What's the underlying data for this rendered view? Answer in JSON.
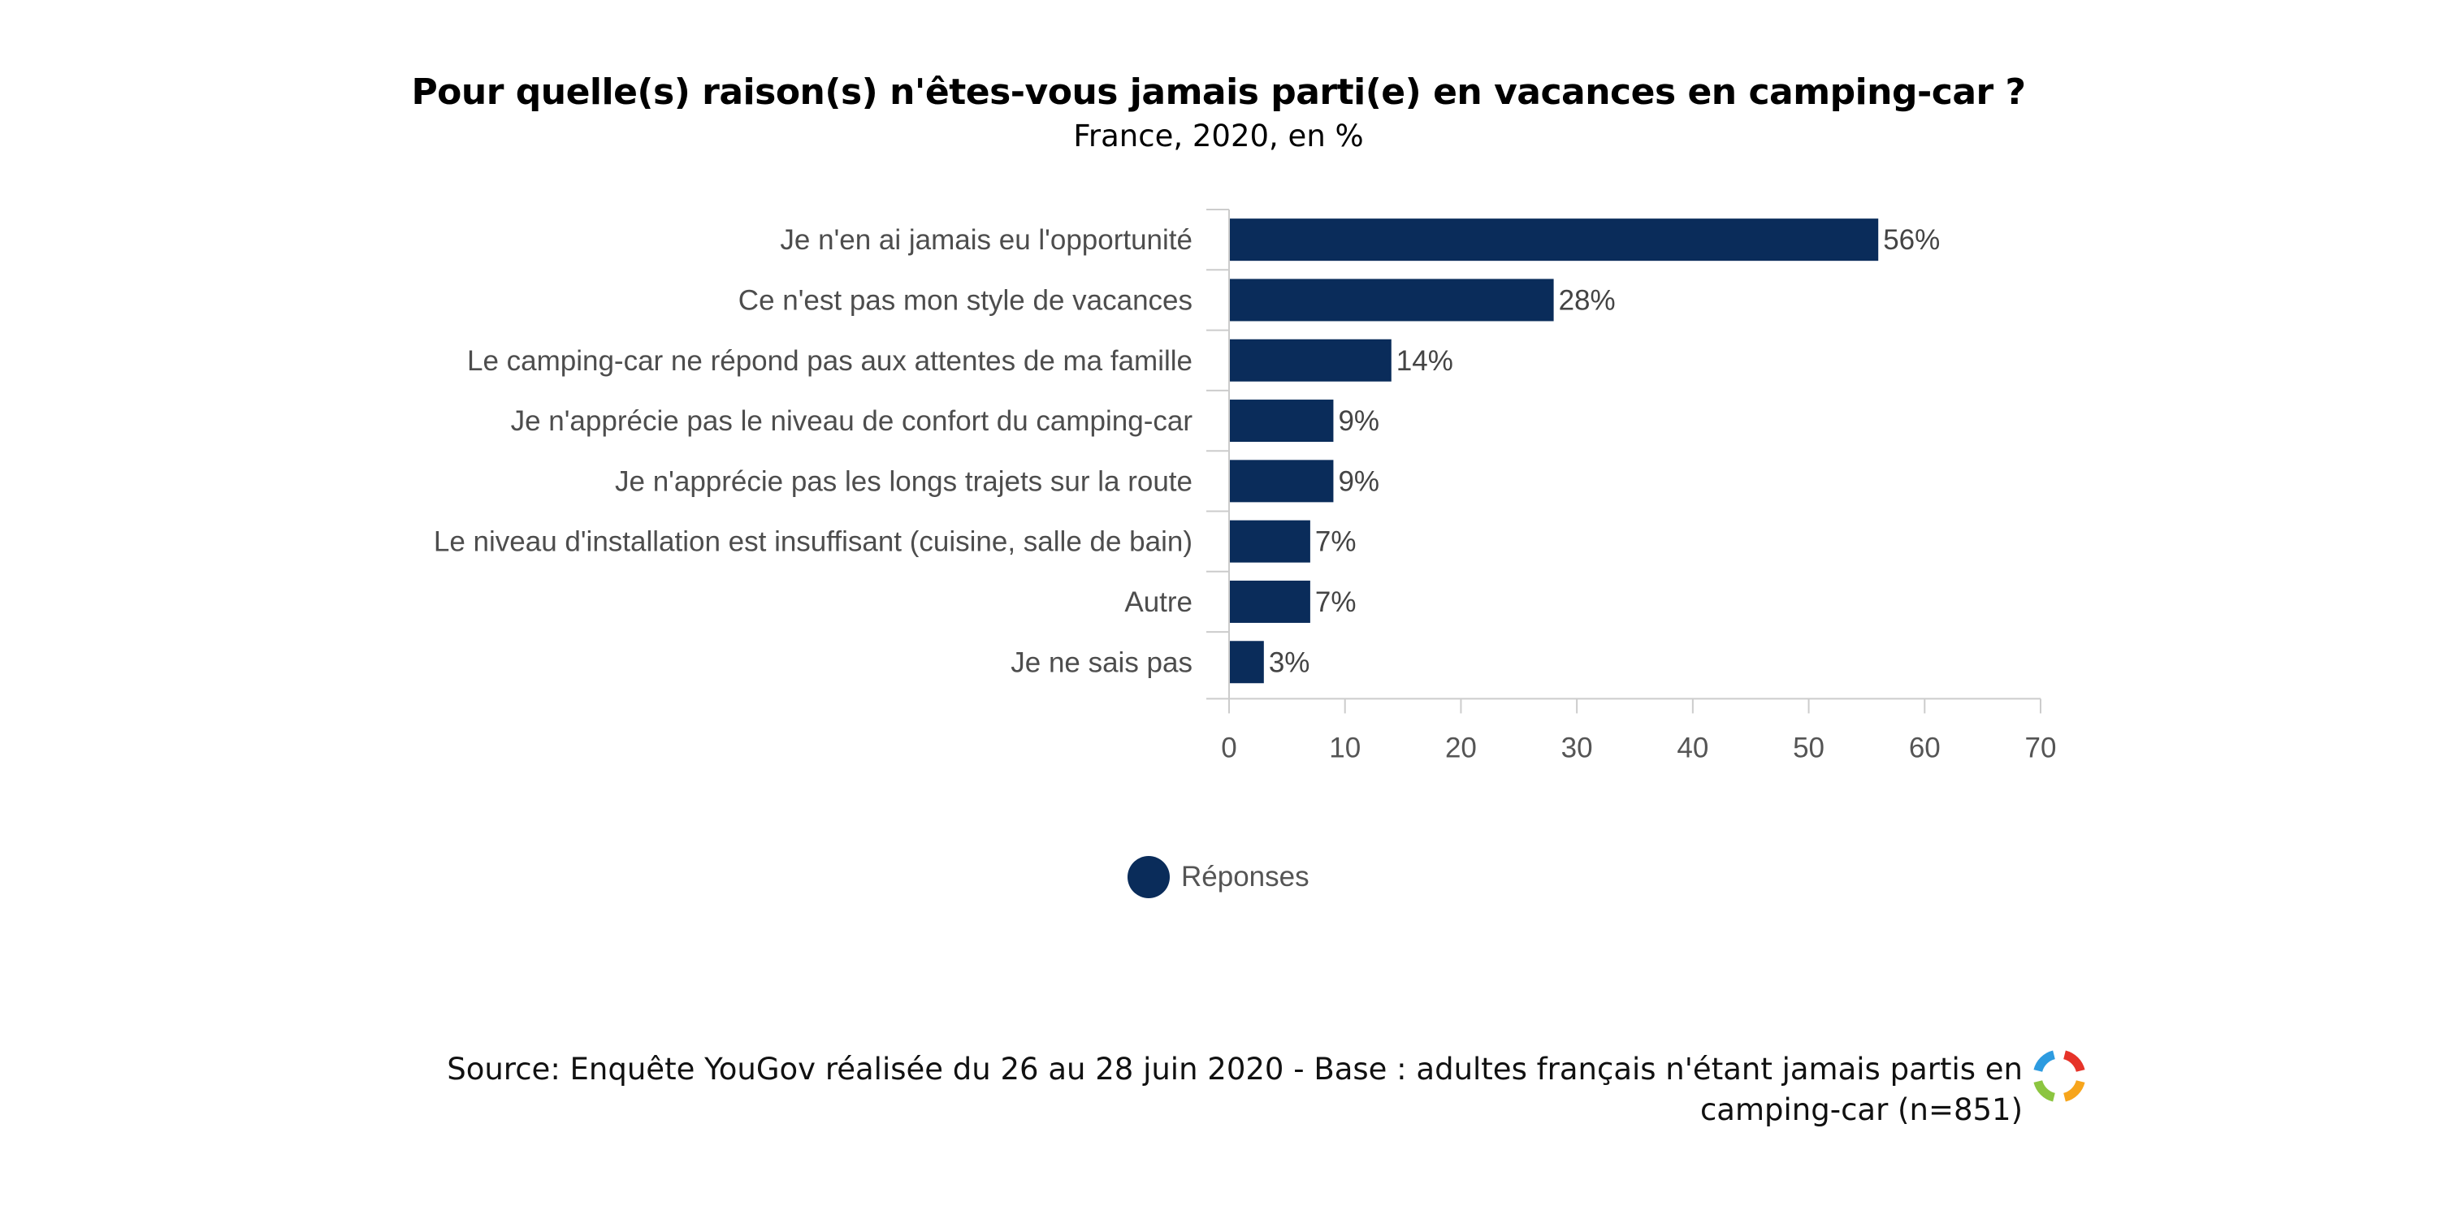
{
  "title": "Pour quelle(s) raison(s) n'êtes-vous jamais parti(e) en vacances en camping-car ?",
  "subtitle": "France, 2020, en %",
  "chart_data": {
    "type": "bar",
    "orientation": "horizontal",
    "title": "Pour quelle(s) raison(s) n'êtes-vous jamais parti(e) en vacances en camping-car ?",
    "subtitle": "France, 2020, en %",
    "categories": [
      "Je n'en ai jamais eu l'opportunité",
      "Ce n'est pas mon style de vacances",
      "Le camping-car ne répond pas aux attentes de ma famille",
      "Je n'apprécie pas le niveau de confort du camping-car",
      "Je n'apprécie pas les longs trajets sur la route",
      "Le niveau d'installation est insuffisant (cuisine, salle de bain)",
      "Autre",
      "Je ne sais pas"
    ],
    "series": [
      {
        "name": "Réponses",
        "values": [
          56,
          28,
          14,
          9,
          9,
          7,
          7,
          3
        ],
        "color": "#0a2c5a"
      }
    ],
    "value_labels": [
      "56%",
      "28%",
      "14%",
      "9%",
      "9%",
      "7%",
      "7%",
      "3%"
    ],
    "xlim": [
      0,
      70
    ],
    "xticks": [
      "0",
      "10",
      "20",
      "30",
      "40",
      "50",
      "60",
      "70"
    ],
    "grid": false,
    "legend_position": "bottom"
  },
  "legend": {
    "label": "Réponses"
  },
  "source": "Source: Enquête YouGov réalisée du 26 au 28 juin 2020 - Base : adultes français n'étant jamais partis en camping-car (n=851)",
  "source_lines": [
    "Source: Enquête YouGov réalisée du 26 au 28 juin 2020 - Base : adultes français n'étant jamais partis en",
    "camping-car (n=851)"
  ],
  "logo": {
    "icon": "yougov-ring-logo",
    "colors": [
      "#e63329",
      "#f7a51c",
      "#8cc540",
      "#2d9be0"
    ]
  }
}
